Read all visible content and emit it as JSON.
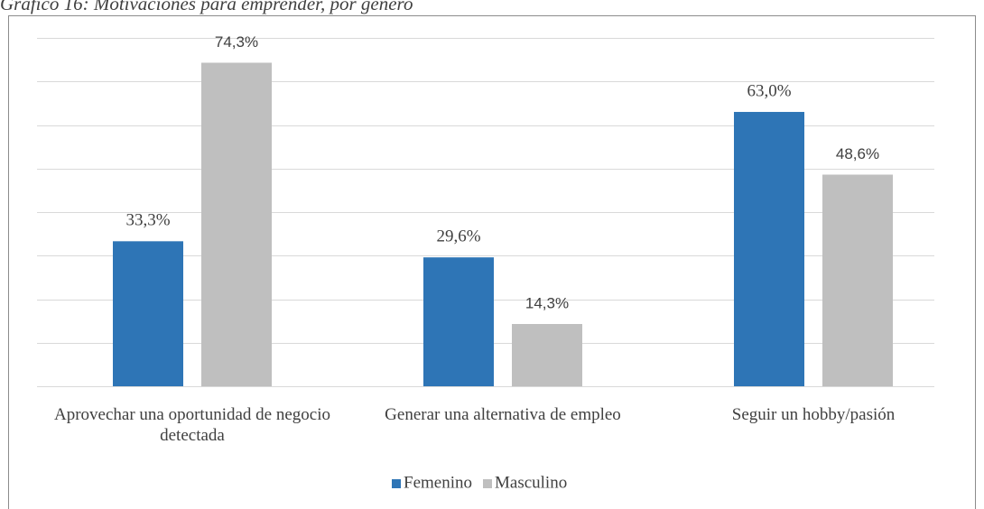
{
  "chart_data": {
    "type": "bar",
    "title": "Gráfico 16: Motivaciones para emprender, por género",
    "categories": [
      "Aprovechar una oportunidad de negocio detectada",
      "Generar una alternativa de empleo",
      "Seguir un hobby/pasión"
    ],
    "series": [
      {
        "name": "Femenino",
        "color": "#2e75b6",
        "values": [
          33.3,
          29.6,
          63.0
        ],
        "value_labels": [
          "33,3%",
          "29,6%",
          "63,0%"
        ]
      },
      {
        "name": "Masculino",
        "color": "#bfbfbf",
        "values": [
          74.3,
          14.3,
          48.6
        ],
        "value_labels": [
          "74,3%",
          "14,3%",
          "48,6%"
        ]
      }
    ],
    "ylim": [
      0,
      80
    ],
    "yticks": [
      0,
      10,
      20,
      30,
      40,
      50,
      60,
      70,
      80
    ],
    "grid": true,
    "legend": "bottom"
  }
}
